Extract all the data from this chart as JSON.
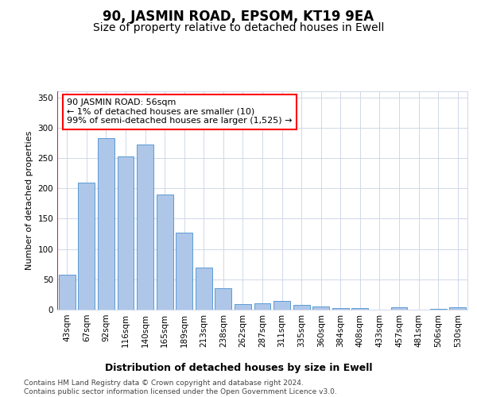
{
  "title": "90, JASMIN ROAD, EPSOM, KT19 9EA",
  "subtitle": "Size of property relative to detached houses in Ewell",
  "xlabel": "Distribution of detached houses by size in Ewell",
  "ylabel": "Number of detached properties",
  "categories": [
    "43sqm",
    "67sqm",
    "92sqm",
    "116sqm",
    "140sqm",
    "165sqm",
    "189sqm",
    "213sqm",
    "238sqm",
    "262sqm",
    "287sqm",
    "311sqm",
    "335sqm",
    "360sqm",
    "384sqm",
    "408sqm",
    "433sqm",
    "457sqm",
    "481sqm",
    "506sqm",
    "530sqm"
  ],
  "values": [
    58,
    210,
    283,
    253,
    272,
    190,
    127,
    70,
    36,
    9,
    10,
    14,
    8,
    5,
    2,
    3,
    0,
    4,
    0,
    1,
    4
  ],
  "bar_color": "#aec6e8",
  "bar_edge_color": "#5b9bd5",
  "background_color": "#ffffff",
  "grid_color": "#d0d8e8",
  "annotation_text": "90 JASMIN ROAD: 56sqm\n← 1% of detached houses are smaller (10)\n99% of semi-detached houses are larger (1,525) →",
  "vline_color": "#cc0000",
  "ylim": [
    0,
    360
  ],
  "yticks": [
    0,
    50,
    100,
    150,
    200,
    250,
    300,
    350
  ],
  "footnote": "Contains HM Land Registry data © Crown copyright and database right 2024.\nContains public sector information licensed under the Open Government Licence v3.0.",
  "title_fontsize": 12,
  "subtitle_fontsize": 10,
  "xlabel_fontsize": 9,
  "ylabel_fontsize": 8,
  "tick_fontsize": 7.5,
  "annotation_fontsize": 8,
  "footnote_fontsize": 6.5
}
